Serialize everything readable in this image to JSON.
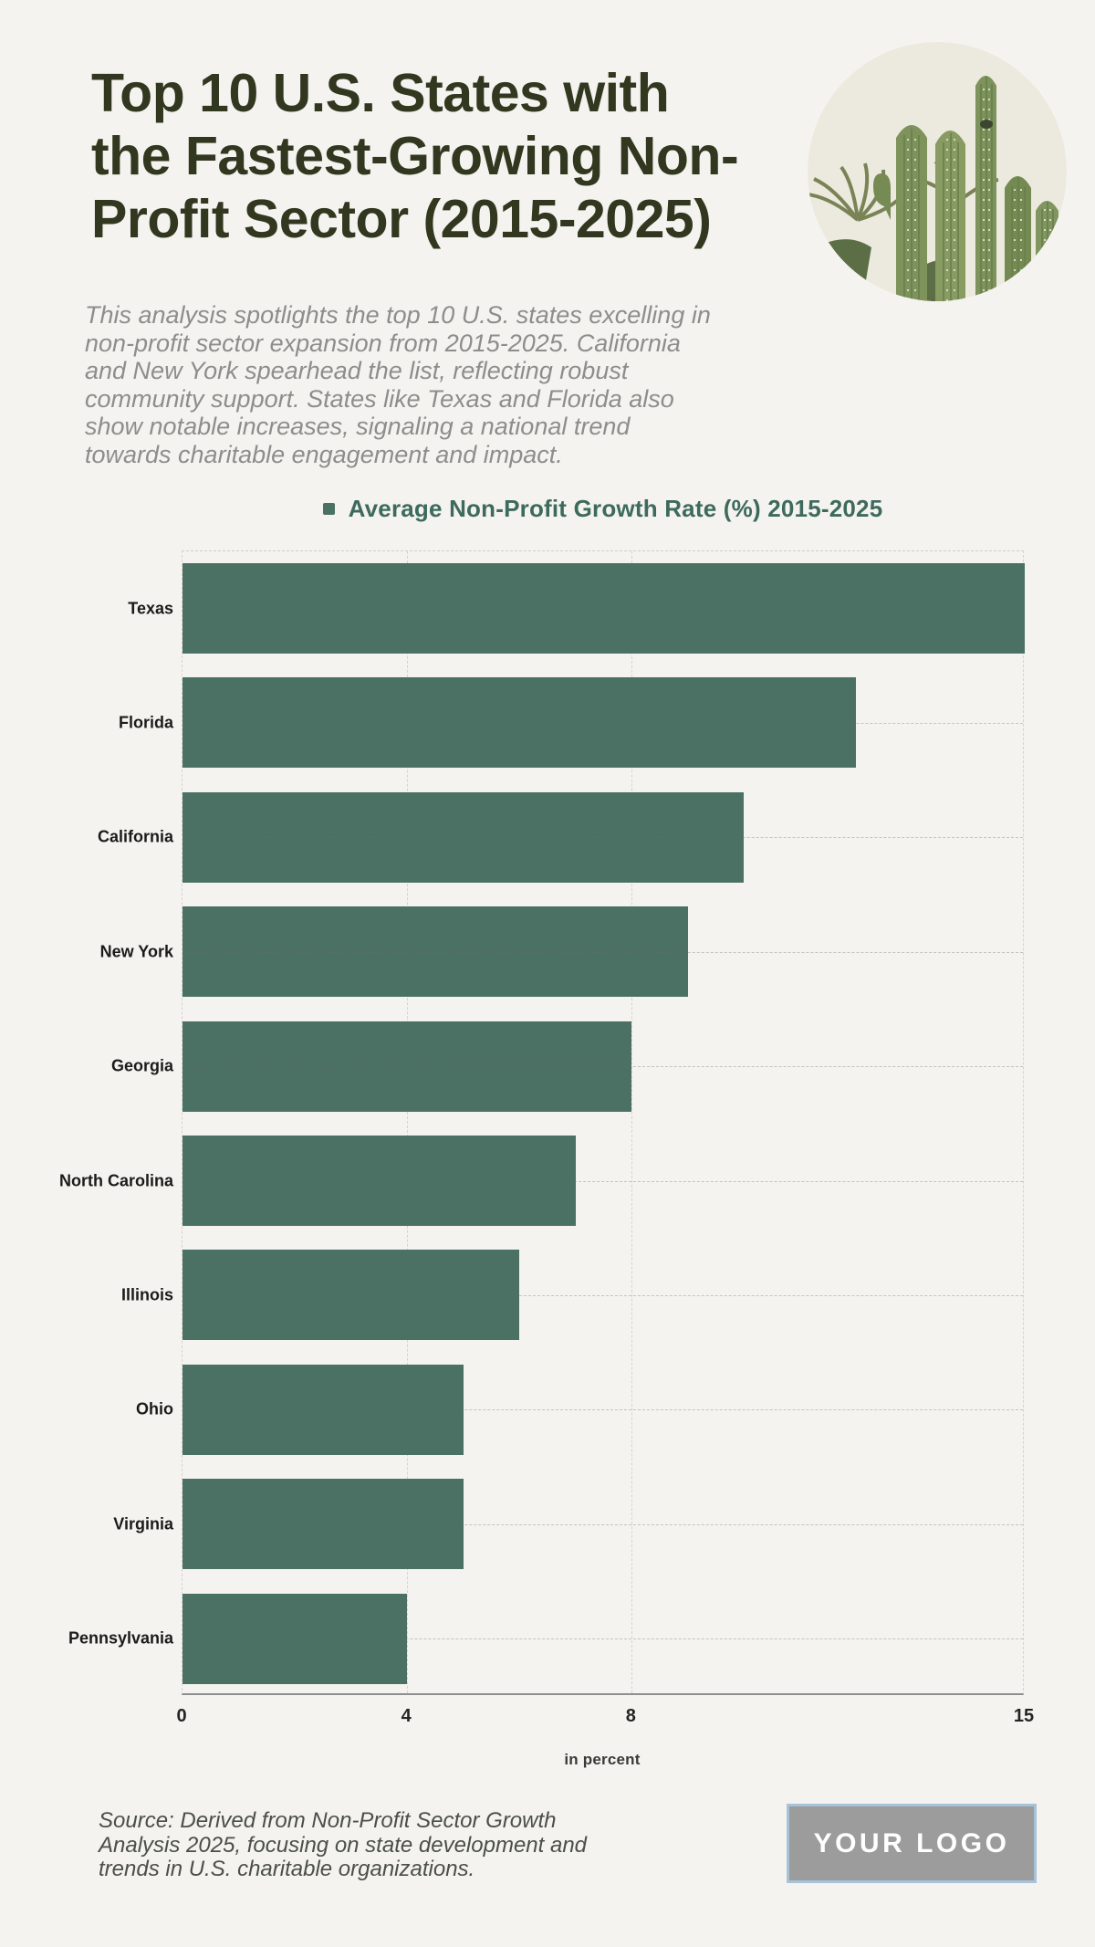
{
  "page": {
    "title_lines": [
      "Top 10 U.S. States with",
      "the Fastest-Growing Non-",
      "Profit Sector (2015-2025)"
    ],
    "description": "This analysis spotlights the top 10 U.S. states excelling in non-profit sector expansion from 2015-2025. California and New York spearhead the list, reflecting robust community support. States like Texas and Florida also show notable increases, signaling a national trend towards charitable engagement and impact.",
    "source_note": "Source: Derived from Non-Profit Sector Growth Analysis 2025, focusing on state development and trends in U.S. charitable organizations.",
    "logo_text": "YOUR LOGO",
    "header_image": "cactus-photo-circle"
  },
  "legend": {
    "label": "Average Non-Profit Growth Rate (%) 2015-2025"
  },
  "chart_data": {
    "type": "bar",
    "orientation": "horizontal",
    "title": "Average Non-Profit Growth Rate (%) 2015-2025",
    "categories": [
      "Texas",
      "Florida",
      "California",
      "New York",
      "Georgia",
      "North Carolina",
      "Illinois",
      "Ohio",
      "Virginia",
      "Pennsylvania"
    ],
    "values": [
      15,
      12,
      10,
      9,
      8,
      7,
      6,
      5,
      5,
      4
    ],
    "xlabel": "in percent",
    "ylabel": "",
    "xlim": [
      0,
      15
    ],
    "x_ticks": [
      0,
      4,
      8,
      15
    ],
    "x_gridlines": [
      4,
      8
    ],
    "grid": true,
    "legend_position": "top-center",
    "bar_color": "#4a7164"
  },
  "colors": {
    "background": "#f4f3ef",
    "title": "#32371f",
    "bar": "#4a7164",
    "legend_text": "#3e6a5e",
    "description_text": "#8d8d8d",
    "source_text": "#4b4e49",
    "axis_line": "#8f8f8f",
    "gridline": "#d4d3d0",
    "logo_background": "#9c9c9c",
    "logo_border": "#a7c3d9"
  }
}
